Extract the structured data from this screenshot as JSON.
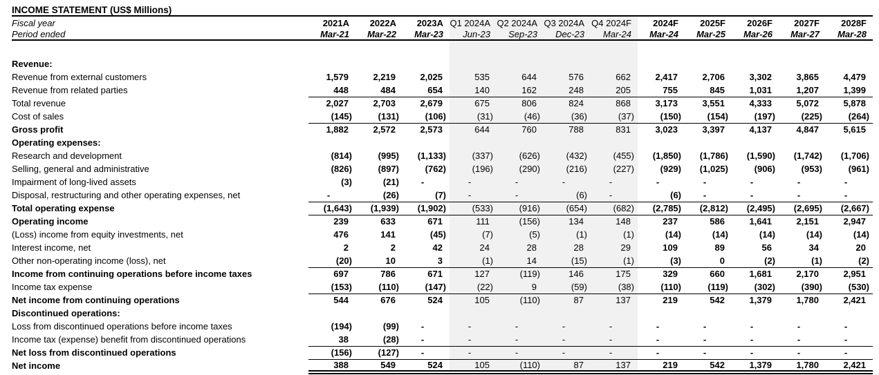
{
  "title": "INCOME STATEMENT (US$ Millions)",
  "colors": {
    "quarter_band": "#f1f1f1"
  },
  "header": {
    "fiscal_year_label": "Fiscal year",
    "period_ended_label": "Period ended",
    "columns": [
      {
        "fiscal_year": "2021A",
        "period": "Mar-21",
        "type": "annual"
      },
      {
        "fiscal_year": "2022A",
        "period": "Mar-22",
        "type": "annual"
      },
      {
        "fiscal_year": "2023A",
        "period": "Mar-23",
        "type": "annual"
      },
      {
        "fiscal_year": "Q1 2024A",
        "period": "Jun-23",
        "type": "quarter"
      },
      {
        "fiscal_year": "Q2 2024A",
        "period": "Sep-23",
        "type": "quarter"
      },
      {
        "fiscal_year": "Q3 2024A",
        "period": "Dec-23",
        "type": "quarter"
      },
      {
        "fiscal_year": "Q4 2024F",
        "period": "Mar-24",
        "type": "quarter"
      },
      {
        "fiscal_year": "2024F",
        "period": "Mar-24",
        "type": "annual"
      },
      {
        "fiscal_year": "2025F",
        "period": "Mar-25",
        "type": "annual"
      },
      {
        "fiscal_year": "2026F",
        "period": "Mar-26",
        "type": "annual"
      },
      {
        "fiscal_year": "2027F",
        "period": "Mar-27",
        "type": "annual"
      },
      {
        "fiscal_year": "2028F",
        "period": "Mar-28",
        "type": "annual"
      }
    ]
  },
  "rows": [
    {
      "id": "revenue-section",
      "label": "Revenue:",
      "bold": true,
      "values": []
    },
    {
      "id": "revenue-external",
      "label": "Revenue from external customers",
      "values": [
        "1,579",
        "2,219",
        "2,025",
        "535",
        "644",
        "576",
        "662",
        "2,417",
        "2,706",
        "3,302",
        "3,865",
        "4,479"
      ]
    },
    {
      "id": "revenue-related",
      "label": "Revenue from related parties",
      "bb": true,
      "values": [
        "448",
        "484",
        "654",
        "140",
        "162",
        "248",
        "205",
        "755",
        "845",
        "1,031",
        "1,207",
        "1,399"
      ]
    },
    {
      "id": "total-revenue",
      "label": "Total revenue",
      "values": [
        "2,027",
        "2,703",
        "2,679",
        "675",
        "806",
        "824",
        "868",
        "3,173",
        "3,551",
        "4,333",
        "5,072",
        "5,878"
      ]
    },
    {
      "id": "cost-of-sales",
      "label": "Cost of sales",
      "bb": true,
      "values": [
        "(145)",
        "(131)",
        "(106)",
        "(31)",
        "(46)",
        "(36)",
        "(37)",
        "(150)",
        "(154)",
        "(197)",
        "(225)",
        "(264)"
      ]
    },
    {
      "id": "gross-profit",
      "label": "Gross profit",
      "bold": true,
      "values": [
        "1,882",
        "2,572",
        "2,573",
        "644",
        "760",
        "788",
        "831",
        "3,023",
        "3,397",
        "4,137",
        "4,847",
        "5,615"
      ]
    },
    {
      "id": "opex-section",
      "label": "Operating expenses:",
      "bold": true,
      "values": []
    },
    {
      "id": "research-development",
      "label": "Research and development",
      "values": [
        "(814)",
        "(995)",
        "(1,133)",
        "(337)",
        "(626)",
        "(432)",
        "(455)",
        "(1,850)",
        "(1,786)",
        "(1,590)",
        "(1,742)",
        "(1,706)"
      ]
    },
    {
      "id": "sga",
      "label": "Selling, general and administrative",
      "values": [
        "(826)",
        "(897)",
        "(762)",
        "(196)",
        "(290)",
        "(216)",
        "(227)",
        "(929)",
        "(1,025)",
        "(906)",
        "(953)",
        "(961)"
      ]
    },
    {
      "id": "impairment",
      "label": "Impairment of long-lived assets",
      "values": [
        "(3)",
        "(21)",
        "-",
        "-",
        "-",
        "-",
        "-",
        "-",
        "-",
        "-",
        "-",
        "-"
      ]
    },
    {
      "id": "disposal-restructuring",
      "label": "Disposal, restructuring and other operating expenses, net",
      "values": [
        "-",
        "(26)",
        "(7)",
        "-",
        "-",
        "(6)",
        "-",
        "(6)",
        "-",
        "-",
        "-",
        "-"
      ]
    },
    {
      "id": "total-operating-expense",
      "label": "Total operating expense",
      "bold": true,
      "bt": true,
      "bb": true,
      "values": [
        "(1,643)",
        "(1,939)",
        "(1,902)",
        "(533)",
        "(916)",
        "(654)",
        "(682)",
        "(2,785)",
        "(2,812)",
        "(2,495)",
        "(2,695)",
        "(2,667)"
      ]
    },
    {
      "id": "operating-income",
      "label": "Operating income",
      "bold": true,
      "values": [
        "239",
        "633",
        "671",
        "111",
        "(156)",
        "134",
        "148",
        "237",
        "586",
        "1,641",
        "2,151",
        "2,947"
      ]
    },
    {
      "id": "equity-investments",
      "label": "(Loss) income from equity investments, net",
      "values": [
        "476",
        "141",
        "(45)",
        "(7)",
        "(5)",
        "(1)",
        "(1)",
        "(14)",
        "(14)",
        "(14)",
        "(14)",
        "(14)"
      ]
    },
    {
      "id": "interest-income",
      "label": "Interest income, net",
      "values": [
        "2",
        "2",
        "42",
        "24",
        "28",
        "28",
        "29",
        "109",
        "89",
        "56",
        "34",
        "20"
      ]
    },
    {
      "id": "other-nonoperating",
      "label": "Other non-operating income (loss), net",
      "values": [
        "(20)",
        "10",
        "3",
        "(1)",
        "14",
        "(15)",
        "(1)",
        "(3)",
        "0",
        "(2)",
        "(1)",
        "(2)"
      ]
    },
    {
      "id": "pretax-income",
      "label": "Income from continuing operations before income taxes",
      "bold": true,
      "bt": true,
      "values": [
        "697",
        "786",
        "671",
        "127",
        "(119)",
        "146",
        "175",
        "329",
        "660",
        "1,681",
        "2,170",
        "2,951"
      ]
    },
    {
      "id": "income-tax-expense",
      "label": "Income tax expense",
      "bb": true,
      "values": [
        "(153)",
        "(110)",
        "(147)",
        "(22)",
        "9",
        "(59)",
        "(38)",
        "(110)",
        "(119)",
        "(302)",
        "(390)",
        "(530)"
      ]
    },
    {
      "id": "net-income-continuing",
      "label": "Net income from continuing operations",
      "bold": true,
      "values": [
        "544",
        "676",
        "524",
        "105",
        "(110)",
        "87",
        "137",
        "219",
        "542",
        "1,379",
        "1,780",
        "2,421"
      ]
    },
    {
      "id": "discontinued-section",
      "label": "Discontinued operations:",
      "bold": true,
      "values": []
    },
    {
      "id": "loss-discontinued",
      "label": "Loss from discontinued operations before income taxes",
      "values": [
        "(194)",
        "(99)",
        "-",
        "-",
        "-",
        "-",
        "-",
        "-",
        "-",
        "-",
        "-",
        "-"
      ]
    },
    {
      "id": "tax-discontinued",
      "label": "Income tax (expense) benefit from discontinued operations",
      "values": [
        "38",
        "(28)",
        "-",
        "-",
        "-",
        "-",
        "-",
        "-",
        "-",
        "-",
        "-",
        "-"
      ]
    },
    {
      "id": "net-loss-discontinued",
      "label": "Net loss from discontinued operations",
      "bold": true,
      "bt": true,
      "values": [
        "(156)",
        "(127)",
        "-",
        "-",
        "-",
        "-",
        "-",
        "-",
        "-",
        "-",
        "-",
        "-"
      ]
    },
    {
      "id": "net-income",
      "label": "Net income",
      "bold": true,
      "bt": true,
      "dbl": true,
      "values": [
        "388",
        "549",
        "524",
        "105",
        "(110)",
        "87",
        "137",
        "219",
        "542",
        "1,379",
        "1,780",
        "2,421"
      ]
    }
  ]
}
